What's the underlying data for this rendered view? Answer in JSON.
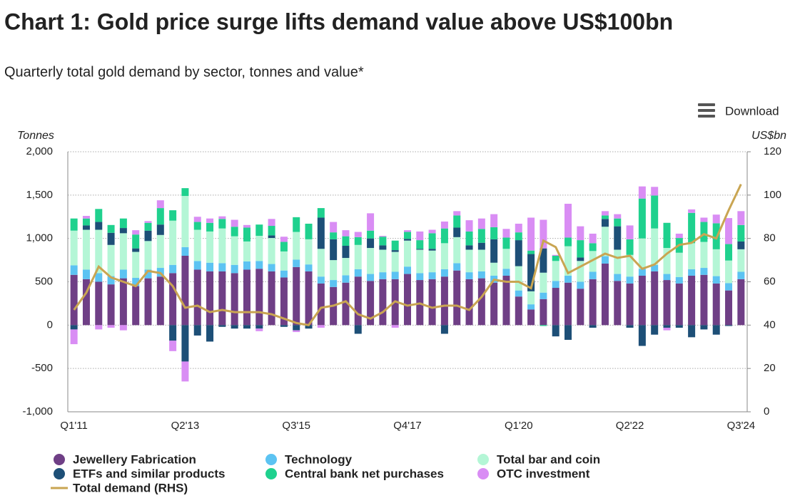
{
  "chart_data": {
    "type": "bar",
    "title": "Chart 1: Gold price surge lifts demand value above US$100bn",
    "subtitle": "Quarterly total gold demand by sector, tonnes and value*",
    "y_label": "Tonnes",
    "y2_label": "US$bn",
    "categories": [
      "Q1'11",
      null,
      null,
      null,
      null,
      null,
      null,
      null,
      null,
      "Q2'13",
      null,
      null,
      null,
      null,
      null,
      null,
      null,
      null,
      "Q3'15",
      null,
      null,
      null,
      null,
      null,
      null,
      null,
      null,
      "Q4'17",
      null,
      null,
      null,
      null,
      null,
      null,
      null,
      null,
      "Q1'20",
      null,
      null,
      null,
      null,
      null,
      null,
      null,
      null,
      "Q2'22",
      null,
      null,
      null,
      null,
      null,
      null,
      null,
      null,
      "Q3'24"
    ],
    "ylim": [
      -1000,
      2000
    ],
    "yticks": [
      {
        "value": -1000,
        "label": "-1,000"
      },
      -500,
      0,
      500,
      {
        "value": 1000,
        "label": "1,000"
      },
      {
        "value": 1500,
        "label": "1,500"
      },
      {
        "value": 2000,
        "label": "2,000"
      }
    ],
    "y2lim": [
      0,
      120
    ],
    "y2ticks": [
      0,
      20,
      40,
      60,
      80,
      100,
      120
    ],
    "grid": true,
    "stacked": true,
    "legend": "bottom",
    "series": [
      {
        "name": "Jewellery Fabrication",
        "color": "#6f3f86",
        "values": [
          580,
          530,
          500,
          470,
          540,
          450,
          540,
          560,
          600,
          800,
          640,
          620,
          620,
          600,
          640,
          650,
          620,
          550,
          670,
          620,
          480,
          440,
          490,
          560,
          510,
          530,
          530,
          590,
          520,
          530,
          560,
          630,
          530,
          540,
          490,
          570,
          330,
          180,
          300,
          430,
          490,
          420,
          530,
          710,
          510,
          480,
          570,
          620,
          520,
          480,
          570,
          580,
          480,
          400,
          530
        ]
      },
      {
        "name": "Technology",
        "color": "#5cc3f2",
        "values": [
          110,
          110,
          100,
          95,
          100,
          95,
          100,
          100,
          95,
          100,
          100,
          100,
          95,
          95,
          95,
          90,
          85,
          80,
          85,
          80,
          80,
          80,
          85,
          85,
          80,
          80,
          85,
          85,
          80,
          80,
          85,
          85,
          80,
          80,
          80,
          80,
          70,
          60,
          75,
          80,
          80,
          80,
          85,
          85,
          80,
          80,
          80,
          75,
          70,
          75,
          75,
          80,
          85,
          85,
          85
        ]
      },
      {
        "name": "Total bar and coin",
        "color": "#b4f6d6",
        "values": [
          400,
          460,
          500,
          360,
          420,
          300,
          330,
          380,
          510,
          590,
          360,
          360,
          400,
          330,
          230,
          290,
          300,
          220,
          320,
          290,
          320,
          230,
          200,
          280,
          300,
          260,
          230,
          300,
          270,
          250,
          300,
          300,
          260,
          250,
          150,
          230,
          280,
          150,
          230,
          230,
          340,
          240,
          240,
          340,
          280,
          250,
          350,
          420,
          300,
          280,
          300,
          300,
          310,
          260,
          260
        ]
      },
      {
        "name": "ETFs and similar products",
        "color": "#1d4f77",
        "values": [
          -50,
          50,
          90,
          140,
          60,
          40,
          120,
          120,
          -180,
          -420,
          -120,
          -190,
          -20,
          -40,
          -40,
          -40,
          30,
          -20,
          -60,
          -40,
          360,
          240,
          140,
          -100,
          110,
          50,
          20,
          20,
          10,
          20,
          -100,
          110,
          50,
          80,
          270,
          0,
          300,
          430,
          280,
          -130,
          -170,
          40,
          -30,
          90,
          270,
          -30,
          -240,
          -110,
          -30,
          -30,
          -140,
          -50,
          -110,
          -10,
          90
        ]
      },
      {
        "name": "Central bank net purchases",
        "color": "#1fd18e",
        "values": [
          140,
          80,
          150,
          90,
          110,
          160,
          90,
          190,
          120,
          90,
          90,
          100,
          110,
          110,
          160,
          130,
          110,
          110,
          170,
          180,
          110,
          80,
          110,
          90,
          90,
          100,
          110,
          80,
          100,
          180,
          170,
          140,
          160,
          160,
          140,
          130,
          90,
          40,
          -10,
          60,
          100,
          200,
          90,
          40,
          90,
          180,
          460,
          380,
          290,
          170,
          350,
          230,
          300,
          190,
          190
        ]
      },
      {
        "name": "OTC investment",
        "color": "#d98df4",
        "values": [
          -170,
          30,
          -50,
          -30,
          -60,
          50,
          20,
          90,
          -120,
          -230,
          60,
          50,
          30,
          80,
          30,
          -30,
          80,
          60,
          -20,
          0,
          -30,
          120,
          70,
          60,
          200,
          10,
          -30,
          20,
          100,
          40,
          80,
          50,
          130,
          120,
          150,
          100,
          100,
          380,
          330,
          10,
          390,
          160,
          110,
          50,
          50,
          160,
          140,
          100,
          -30,
          50,
          40,
          50,
          100,
          300,
          160
        ]
      },
      {
        "name": "Total demand (RHS)",
        "type": "line",
        "axis": "y2",
        "color": "#c9a552",
        "values": [
          47,
          55,
          67,
          62,
          60,
          58,
          65,
          64,
          58,
          48,
          49,
          46,
          47,
          46,
          46,
          46,
          45,
          43,
          41,
          40,
          48,
          49,
          51,
          45,
          43,
          46,
          51,
          49,
          50,
          48,
          49,
          49,
          47,
          53,
          61,
          60,
          60,
          57,
          79,
          76,
          64,
          67,
          70,
          73,
          71,
          72,
          66,
          68,
          73,
          77,
          78,
          82,
          80,
          93,
          105
        ]
      }
    ]
  },
  "download": "Download"
}
